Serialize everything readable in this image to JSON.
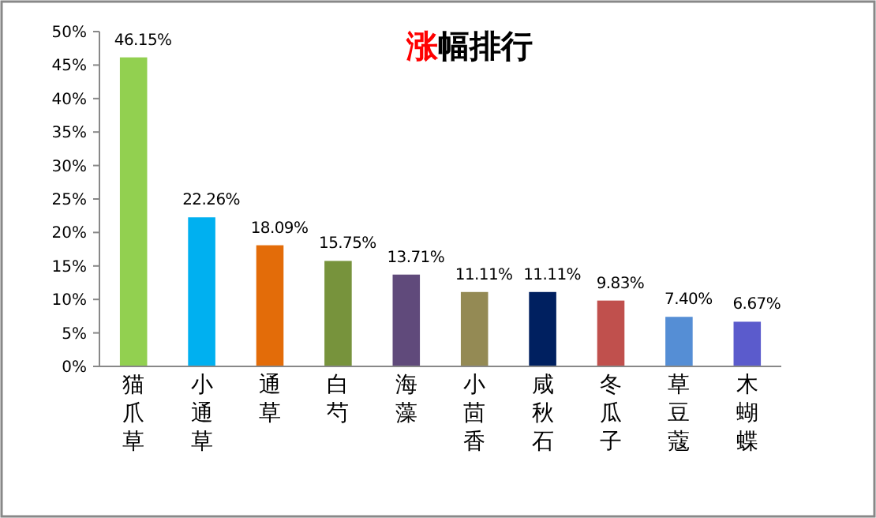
{
  "chart_data": {
    "type": "bar",
    "title": "涨幅排行",
    "categories": [
      "猫爪草",
      "小通草",
      "通草",
      "白芍",
      "海藻",
      "小茴香",
      "咸秋石",
      "冬瓜子",
      "草豆蔻",
      "木蝴蝶"
    ],
    "values": [
      46.15,
      22.26,
      18.09,
      15.75,
      13.71,
      11.11,
      11.11,
      9.83,
      7.4,
      6.67
    ],
    "colors": [
      "#92d050",
      "#00b0f0",
      "#e36c09",
      "#77933c",
      "#604a7b",
      "#948a54",
      "#002060",
      "#c0504d",
      "#558ed5",
      "#5b5bcc"
    ],
    "value_labels": [
      "46.15%",
      "22.26%",
      "18.09%",
      "15.75%",
      "13.71%",
      "11.11%",
      "11.11%",
      "9.83%",
      "7.40%",
      "6.67%"
    ],
    "ylim": [
      0,
      50
    ],
    "yticks": [
      {
        "value": 0,
        "label": "0%"
      },
      {
        "value": 5,
        "label": "5%"
      },
      {
        "value": 10,
        "label": "10%"
      },
      {
        "value": 15,
        "label": "15%"
      },
      {
        "value": 20,
        "label": "20%"
      },
      {
        "value": 25,
        "label": "25%"
      },
      {
        "value": 30,
        "label": "30%"
      },
      {
        "value": 35,
        "label": "35%"
      },
      {
        "value": 40,
        "label": "40%"
      },
      {
        "value": 45,
        "label": "45%"
      },
      {
        "value": 50,
        "label": "50%"
      }
    ],
    "grid": false
  }
}
